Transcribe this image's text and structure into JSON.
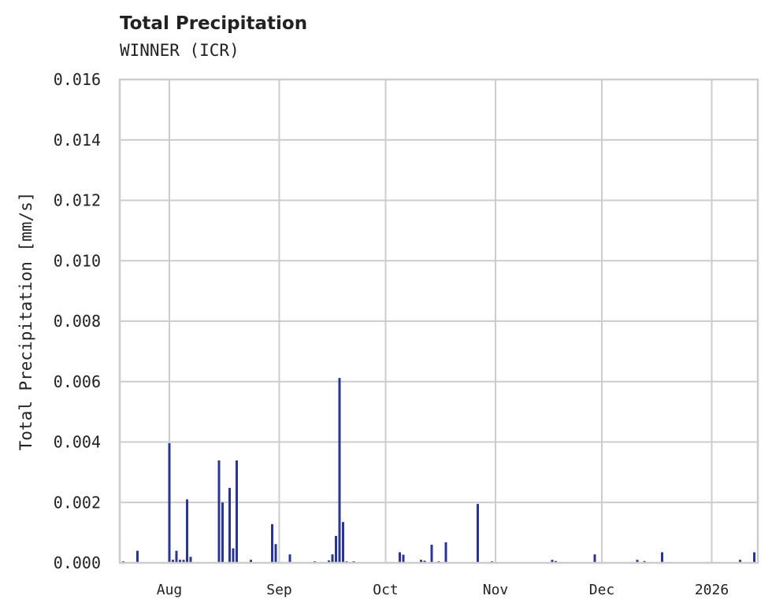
{
  "header": {
    "title": "Total Precipitation",
    "subtitle": "WINNER (ICR)"
  },
  "colors": {
    "bar": "#283593",
    "grid": "#cccccc",
    "frame": "#cccccc",
    "text": "#222222",
    "background": "#ffffff"
  },
  "chart_data": {
    "type": "bar",
    "title": "Total Precipitation",
    "subtitle": "WINNER (ICR)",
    "xlabel": "",
    "ylabel": "Total Precipitation [mm/s]",
    "ylim": [
      0,
      0.016
    ],
    "yticks": [
      "0.000",
      "0.002",
      "0.004",
      "0.006",
      "0.008",
      "0.010",
      "0.012",
      "0.014",
      "0.016"
    ],
    "xticks": [
      "Aug",
      "Sep",
      "Oct",
      "Nov",
      "Dec",
      "2026"
    ],
    "xrange": [
      "2025-07-18",
      "2026-01-14"
    ],
    "grid": true,
    "legend": null,
    "series": [
      {
        "name": "Total Precipitation",
        "x": [
          "2025-07-19",
          "2025-07-23",
          "2025-08-01",
          "2025-08-01",
          "2025-08-02",
          "2025-08-03",
          "2025-08-04",
          "2025-08-05",
          "2025-08-06",
          "2025-08-07",
          "2025-08-15",
          "2025-08-16",
          "2025-08-18",
          "2025-08-19",
          "2025-08-20",
          "2025-08-24",
          "2025-08-30",
          "2025-08-31",
          "2025-09-04",
          "2025-09-11",
          "2025-09-15",
          "2025-09-16",
          "2025-09-17",
          "2025-09-17",
          "2025-09-18",
          "2025-09-18",
          "2025-09-19",
          "2025-09-20",
          "2025-09-22",
          "2025-10-05",
          "2025-10-06",
          "2025-10-11",
          "2025-10-12",
          "2025-10-14",
          "2025-10-16",
          "2025-10-18",
          "2025-10-27",
          "2025-10-31",
          "2025-11-17",
          "2025-11-18",
          "2025-11-29",
          "2025-12-11",
          "2025-12-13",
          "2025-12-18",
          "2026-01-09",
          "2026-01-13"
        ],
        "values": [
          5e-05,
          0.0004,
          0.00396,
          5e-05,
          0.0001,
          0.0004,
          0.0001,
          0.0001,
          0.0021,
          0.0002,
          0.00339,
          0.002,
          0.00248,
          0.00048,
          0.00339,
          0.0001,
          0.00128,
          0.00062,
          0.00028,
          5e-05,
          8e-05,
          0.00028,
          0.00075,
          0.00089,
          0.00612,
          0.00234,
          0.00135,
          5e-05,
          5e-05,
          0.00035,
          0.00027,
          0.0001,
          7e-05,
          0.0006,
          5e-05,
          0.00068,
          0.00195,
          5e-05,
          0.0001,
          6e-05,
          0.00028,
          0.0001,
          6e-05,
          0.00035,
          0.0001,
          0.00035
        ]
      }
    ]
  }
}
